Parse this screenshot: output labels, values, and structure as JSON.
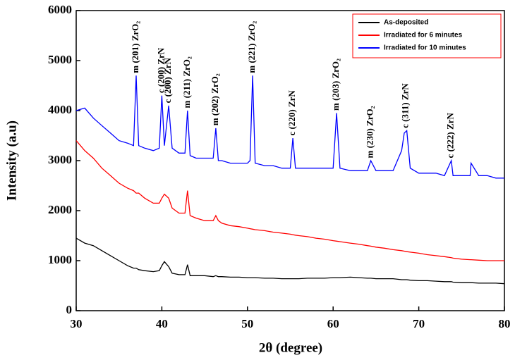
{
  "chart_data": {
    "type": "line",
    "xlabel": "2θ (degree)",
    "ylabel": "Intensity (a.u)",
    "xlim": [
      30,
      80
    ],
    "ylim": [
      0,
      6000
    ],
    "xticks": [
      30,
      40,
      50,
      60,
      70,
      80
    ],
    "yticks": [
      0,
      1000,
      2000,
      3000,
      4000,
      5000,
      6000
    ],
    "legend": "upper right",
    "x": [
      30,
      31,
      32,
      33,
      34,
      35,
      36,
      36.7,
      37,
      37.3,
      38,
      39,
      39.7,
      40,
      40.3,
      40.8,
      41.2,
      42,
      42.7,
      43,
      43.3,
      44,
      45,
      46,
      46.3,
      46.6,
      47,
      48,
      49,
      50,
      50.3,
      50.6,
      50.9,
      52,
      53,
      54,
      55,
      55.3,
      55.6,
      56,
      57,
      58,
      59,
      60,
      60.4,
      60.8,
      62,
      63,
      64,
      64.4,
      65,
      66,
      67,
      68,
      68.3,
      68.6,
      69,
      70,
      71,
      72,
      73,
      73.8,
      74,
      75,
      76,
      76.1,
      77,
      78,
      79,
      80
    ],
    "series": [
      {
        "name": "As-deposited",
        "color": "#000000",
        "values": [
          1450,
          1350,
          1300,
          1200,
          1100,
          1000,
          900,
          850,
          850,
          820,
          800,
          780,
          800,
          900,
          980,
          880,
          750,
          720,
          720,
          920,
          700,
          700,
          700,
          680,
          700,
          680,
          680,
          670,
          670,
          660,
          660,
          660,
          660,
          650,
          650,
          640,
          640,
          640,
          640,
          640,
          650,
          650,
          650,
          660,
          660,
          660,
          670,
          660,
          650,
          650,
          640,
          640,
          640,
          620,
          620,
          620,
          610,
          600,
          600,
          590,
          580,
          580,
          570,
          560,
          560,
          560,
          550,
          550,
          550,
          540
        ]
      },
      {
        "name": "Irradiated for 6 minutes",
        "color": "#ff0000",
        "values": [
          3400,
          3200,
          3050,
          2850,
          2700,
          2550,
          2450,
          2400,
          2350,
          2350,
          2250,
          2150,
          2150,
          2250,
          2330,
          2250,
          2050,
          1950,
          1950,
          2400,
          1900,
          1850,
          1800,
          1800,
          1900,
          1800,
          1750,
          1700,
          1680,
          1650,
          1640,
          1630,
          1620,
          1600,
          1570,
          1550,
          1530,
          1520,
          1510,
          1500,
          1480,
          1450,
          1430,
          1400,
          1390,
          1380,
          1350,
          1330,
          1300,
          1290,
          1270,
          1250,
          1220,
          1200,
          1190,
          1180,
          1170,
          1150,
          1120,
          1100,
          1080,
          1060,
          1050,
          1030,
          1020,
          1020,
          1010,
          1000,
          1000,
          1000
        ]
      },
      {
        "name": "Irradiated for 10 minutes",
        "color": "#0000ff",
        "values": [
          4000,
          4050,
          3850,
          3700,
          3550,
          3400,
          3350,
          3300,
          4700,
          3300,
          3250,
          3200,
          3250,
          4300,
          3300,
          4100,
          3250,
          3150,
          3150,
          4000,
          3100,
          3050,
          3050,
          3050,
          3650,
          3000,
          3000,
          2950,
          2950,
          2950,
          3000,
          4700,
          2950,
          2900,
          2900,
          2850,
          2850,
          3450,
          2850,
          2850,
          2850,
          2850,
          2850,
          2850,
          3950,
          2850,
          2800,
          2800,
          2800,
          3000,
          2800,
          2800,
          2800,
          3200,
          3550,
          3600,
          2850,
          2750,
          2750,
          2750,
          2700,
          3000,
          2700,
          2700,
          2700,
          2950,
          2700,
          2700,
          2650,
          2650
        ]
      }
    ],
    "annotations": [
      {
        "text": "m (201) ZrO₂",
        "x": 37,
        "y": 4750
      },
      {
        "text": "c (200) ZrN",
        "x": 40,
        "y": 4350
      },
      {
        "text": "c (200) ZrN",
        "x": 40.8,
        "y": 4150
      },
      {
        "text": "m (211) ZrO₂",
        "x": 43,
        "y": 4050
      },
      {
        "text": "m (202) ZrO₂",
        "x": 46.3,
        "y": 3700
      },
      {
        "text": "m (221) ZrO₂",
        "x": 50.6,
        "y": 4750
      },
      {
        "text": "c (220) ZrN",
        "x": 55.3,
        "y": 3500
      },
      {
        "text": "m (203) ZrO₂",
        "x": 60.4,
        "y": 4000
      },
      {
        "text": "m (230) ZrO₂",
        "x": 64.4,
        "y": 3050
      },
      {
        "text": "c (311) ZrN",
        "x": 68.5,
        "y": 3650
      },
      {
        "text": "c (222) ZrN",
        "x": 73.8,
        "y": 3050
      }
    ]
  }
}
